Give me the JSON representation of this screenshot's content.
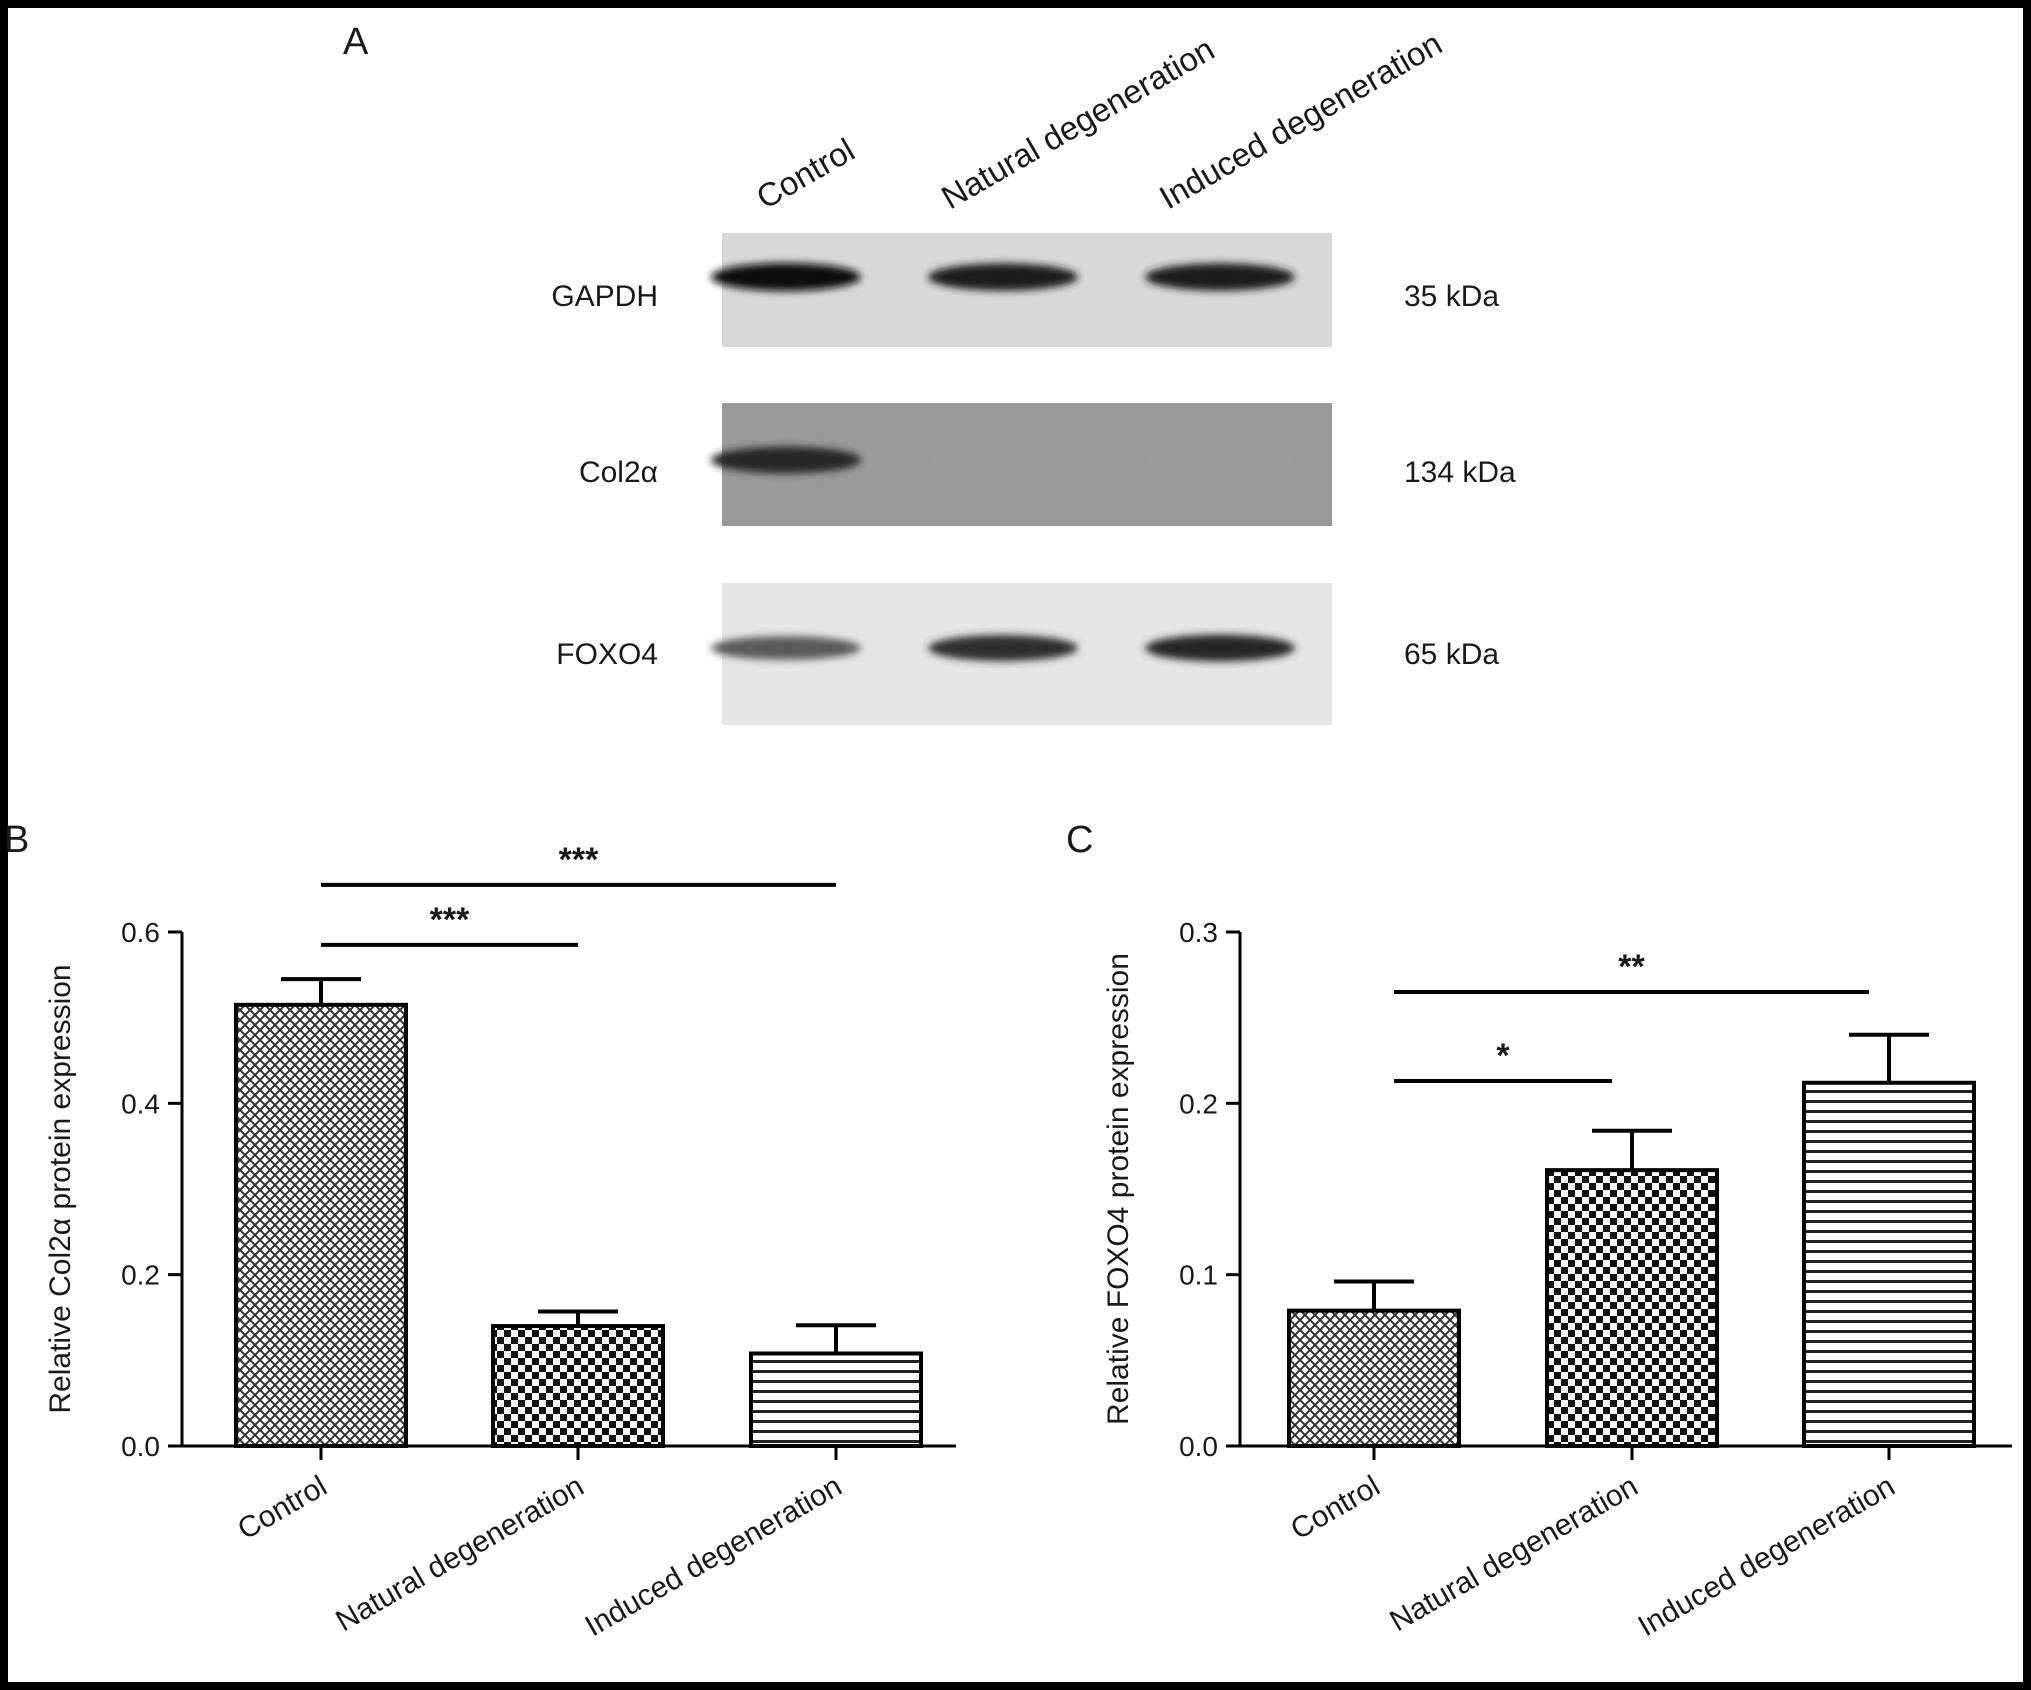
{
  "panels": {
    "a": "A",
    "b": "B",
    "c": "C"
  },
  "blot": {
    "lanes": [
      "Control",
      "Natural degeneration",
      "Induced degeneration"
    ],
    "rows": [
      {
        "protein": "GAPDH",
        "size": "35 kDa",
        "band_intensity": [
          1.0,
          0.95,
          0.95
        ]
      },
      {
        "protein": "Col2α",
        "size": "134 kDa",
        "band_intensity": [
          0.9,
          0.35,
          0.35
        ]
      },
      {
        "protein": "FOXO4",
        "size": "65 kDa",
        "band_intensity": [
          0.65,
          0.85,
          0.9
        ]
      }
    ]
  },
  "chart_data": [
    {
      "type": "bar",
      "panel": "B",
      "categories": [
        "Control",
        "Natural degeneration",
        "Induced degeneration"
      ],
      "values": [
        0.515,
        0.14,
        0.108
      ],
      "errors": [
        0.03,
        0.017,
        0.033
      ],
      "patterns": [
        "crosshatch",
        "checker",
        "hlines"
      ],
      "ylabel": "Relative Col2α protein expression",
      "ylim": [
        0,
        0.6
      ],
      "yticks": [
        "0.0",
        "0.2",
        "0.4",
        "0.6"
      ],
      "significance": [
        {
          "from": 0,
          "to": 1,
          "label": "***",
          "y": 0.585
        },
        {
          "from": 0,
          "to": 2,
          "label": "***",
          "y": 0.655
        }
      ]
    },
    {
      "type": "bar",
      "panel": "C",
      "categories": [
        "Control",
        "Natural degeneration",
        "Induced degeneration"
      ],
      "values": [
        0.079,
        0.161,
        0.212
      ],
      "errors": [
        0.017,
        0.023,
        0.028
      ],
      "patterns": [
        "crosshatch",
        "checker",
        "hlines"
      ],
      "ylabel": "Relative FOXO4 protein expression",
      "ylim": [
        0,
        0.3
      ],
      "yticks": [
        "0.0",
        "0.1",
        "0.2",
        "0.3"
      ],
      "significance": [
        {
          "from": 0,
          "to": 1,
          "label": "*",
          "y": 0.213
        },
        {
          "from": 0,
          "to": 2,
          "label": "**",
          "y": 0.265
        }
      ]
    }
  ]
}
